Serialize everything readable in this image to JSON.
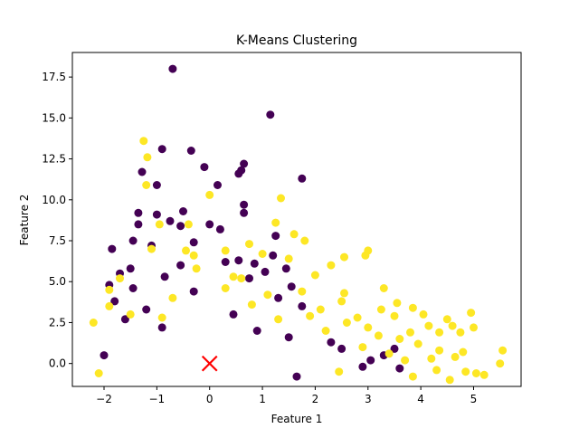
{
  "chart_data": {
    "type": "scatter",
    "title": "K-Means Clustering",
    "xlabel": "Feature 1",
    "ylabel": "Feature 2",
    "xlim": [
      -2.6,
      5.9
    ],
    "ylim": [
      -1.4,
      19.0
    ],
    "xticks": [
      -2,
      -1,
      0,
      1,
      2,
      3,
      4,
      5
    ],
    "yticks": [
      0.0,
      2.5,
      5.0,
      7.5,
      10.0,
      12.5,
      15.0,
      17.5
    ],
    "ytick_labels": [
      "0.0",
      "2.5",
      "5.0",
      "7.5",
      "10.0",
      "12.5",
      "15.0",
      "17.5"
    ],
    "grid": false,
    "legend": "none",
    "colors": {
      "cluster_0": "#440154",
      "cluster_1": "#fde725",
      "centroid": "#ff0000"
    },
    "series": [
      {
        "cluster": 0,
        "points": [
          [
            -0.7,
            18.0
          ],
          [
            1.15,
            15.2
          ],
          [
            -0.9,
            13.1
          ],
          [
            -0.35,
            13.0
          ],
          [
            0.65,
            12.2
          ],
          [
            0.6,
            11.8
          ],
          [
            0.55,
            11.6
          ],
          [
            1.75,
            11.3
          ],
          [
            -1.28,
            11.7
          ],
          [
            -0.1,
            12.0
          ],
          [
            -1.0,
            10.9
          ],
          [
            0.15,
            10.9
          ],
          [
            0.65,
            9.7
          ],
          [
            0.65,
            9.2
          ],
          [
            -1.35,
            9.2
          ],
          [
            -1.0,
            9.1
          ],
          [
            -0.5,
            9.3
          ],
          [
            -1.35,
            8.5
          ],
          [
            -0.75,
            8.7
          ],
          [
            -0.55,
            8.4
          ],
          [
            0.0,
            8.5
          ],
          [
            0.2,
            8.2
          ],
          [
            -1.45,
            7.5
          ],
          [
            -1.85,
            7.0
          ],
          [
            1.25,
            7.8
          ],
          [
            -1.1,
            7.2
          ],
          [
            -0.3,
            7.4
          ],
          [
            1.2,
            6.6
          ],
          [
            0.55,
            6.3
          ],
          [
            0.3,
            6.2
          ],
          [
            0.85,
            6.1
          ],
          [
            -0.55,
            6.0
          ],
          [
            1.45,
            5.8
          ],
          [
            1.05,
            5.6
          ],
          [
            -1.7,
            5.5
          ],
          [
            -1.5,
            5.8
          ],
          [
            -0.85,
            5.3
          ],
          [
            0.75,
            5.2
          ],
          [
            -1.9,
            4.8
          ],
          [
            -1.45,
            4.6
          ],
          [
            1.55,
            4.7
          ],
          [
            -0.3,
            4.4
          ],
          [
            1.3,
            4.0
          ],
          [
            -1.8,
            3.8
          ],
          [
            -1.2,
            3.3
          ],
          [
            0.45,
            3.0
          ],
          [
            1.75,
            3.5
          ],
          [
            -1.6,
            2.7
          ],
          [
            -0.9,
            2.2
          ],
          [
            0.9,
            2.0
          ],
          [
            1.5,
            1.6
          ],
          [
            2.3,
            1.3
          ],
          [
            2.5,
            0.9
          ],
          [
            3.05,
            0.2
          ],
          [
            2.9,
            -0.2
          ],
          [
            3.3,
            0.5
          ],
          [
            3.6,
            -0.3
          ],
          [
            -2.0,
            0.5
          ],
          [
            1.65,
            -0.8
          ],
          [
            3.5,
            0.9
          ]
        ]
      },
      {
        "cluster": 1,
        "points": [
          [
            -1.25,
            13.6
          ],
          [
            -1.18,
            12.6
          ],
          [
            -1.2,
            10.9
          ],
          [
            0.0,
            10.3
          ],
          [
            1.35,
            10.1
          ],
          [
            1.25,
            8.6
          ],
          [
            -0.4,
            8.5
          ],
          [
            -0.95,
            8.5
          ],
          [
            1.6,
            7.9
          ],
          [
            1.8,
            7.5
          ],
          [
            0.75,
            7.3
          ],
          [
            -1.1,
            7.0
          ],
          [
            -0.45,
            6.9
          ],
          [
            -0.3,
            6.6
          ],
          [
            0.3,
            6.9
          ],
          [
            1.0,
            6.7
          ],
          [
            2.55,
            6.5
          ],
          [
            3.0,
            6.9
          ],
          [
            2.3,
            6.0
          ],
          [
            1.5,
            6.4
          ],
          [
            2.95,
            6.6
          ],
          [
            3.3,
            4.6
          ],
          [
            2.55,
            4.3
          ],
          [
            3.55,
            3.7
          ],
          [
            3.85,
            3.4
          ],
          [
            4.05,
            3.0
          ],
          [
            4.5,
            2.7
          ],
          [
            4.95,
            3.1
          ],
          [
            5.0,
            2.2
          ],
          [
            4.35,
            1.9
          ],
          [
            4.15,
            2.3
          ],
          [
            4.6,
            2.3
          ],
          [
            4.75,
            1.9
          ],
          [
            3.25,
            3.3
          ],
          [
            3.5,
            2.9
          ],
          [
            3.0,
            2.2
          ],
          [
            2.8,
            2.8
          ],
          [
            3.8,
            1.9
          ],
          [
            5.55,
            0.8
          ],
          [
            5.5,
            0.0
          ],
          [
            5.2,
            -0.7
          ],
          [
            5.05,
            -0.6
          ],
          [
            4.65,
            0.4
          ],
          [
            4.85,
            -0.5
          ],
          [
            4.35,
            0.8
          ],
          [
            3.95,
            1.2
          ],
          [
            3.6,
            1.5
          ],
          [
            2.0,
            5.4
          ],
          [
            1.75,
            4.4
          ],
          [
            2.1,
            3.3
          ],
          [
            2.5,
            3.8
          ],
          [
            -2.2,
            2.5
          ],
          [
            -1.7,
            5.2
          ],
          [
            -1.9,
            4.5
          ],
          [
            -0.25,
            5.8
          ],
          [
            0.45,
            5.3
          ],
          [
            0.6,
            5.2
          ],
          [
            -0.7,
            4.0
          ],
          [
            1.1,
            4.2
          ],
          [
            0.8,
            3.6
          ],
          [
            -1.5,
            3.0
          ],
          [
            1.3,
            2.7
          ],
          [
            2.2,
            2.0
          ],
          [
            2.6,
            2.5
          ],
          [
            3.2,
            1.7
          ],
          [
            4.2,
            0.3
          ],
          [
            4.8,
            0.7
          ],
          [
            4.3,
            -0.4
          ],
          [
            3.7,
            0.2
          ],
          [
            2.9,
            1.0
          ],
          [
            3.4,
            0.6
          ],
          [
            -1.9,
            3.5
          ],
          [
            -0.9,
            2.8
          ],
          [
            0.3,
            4.6
          ],
          [
            1.9,
            2.9
          ],
          [
            -2.1,
            -0.6
          ],
          [
            2.45,
            -0.5
          ],
          [
            3.85,
            -0.8
          ],
          [
            4.55,
            -1.0
          ]
        ]
      }
    ],
    "centroids": [
      {
        "cluster": 0,
        "x": 0.0,
        "y": 0.0
      },
      {
        "cluster": 1,
        "x": 0.0,
        "y": 0.0
      }
    ]
  }
}
